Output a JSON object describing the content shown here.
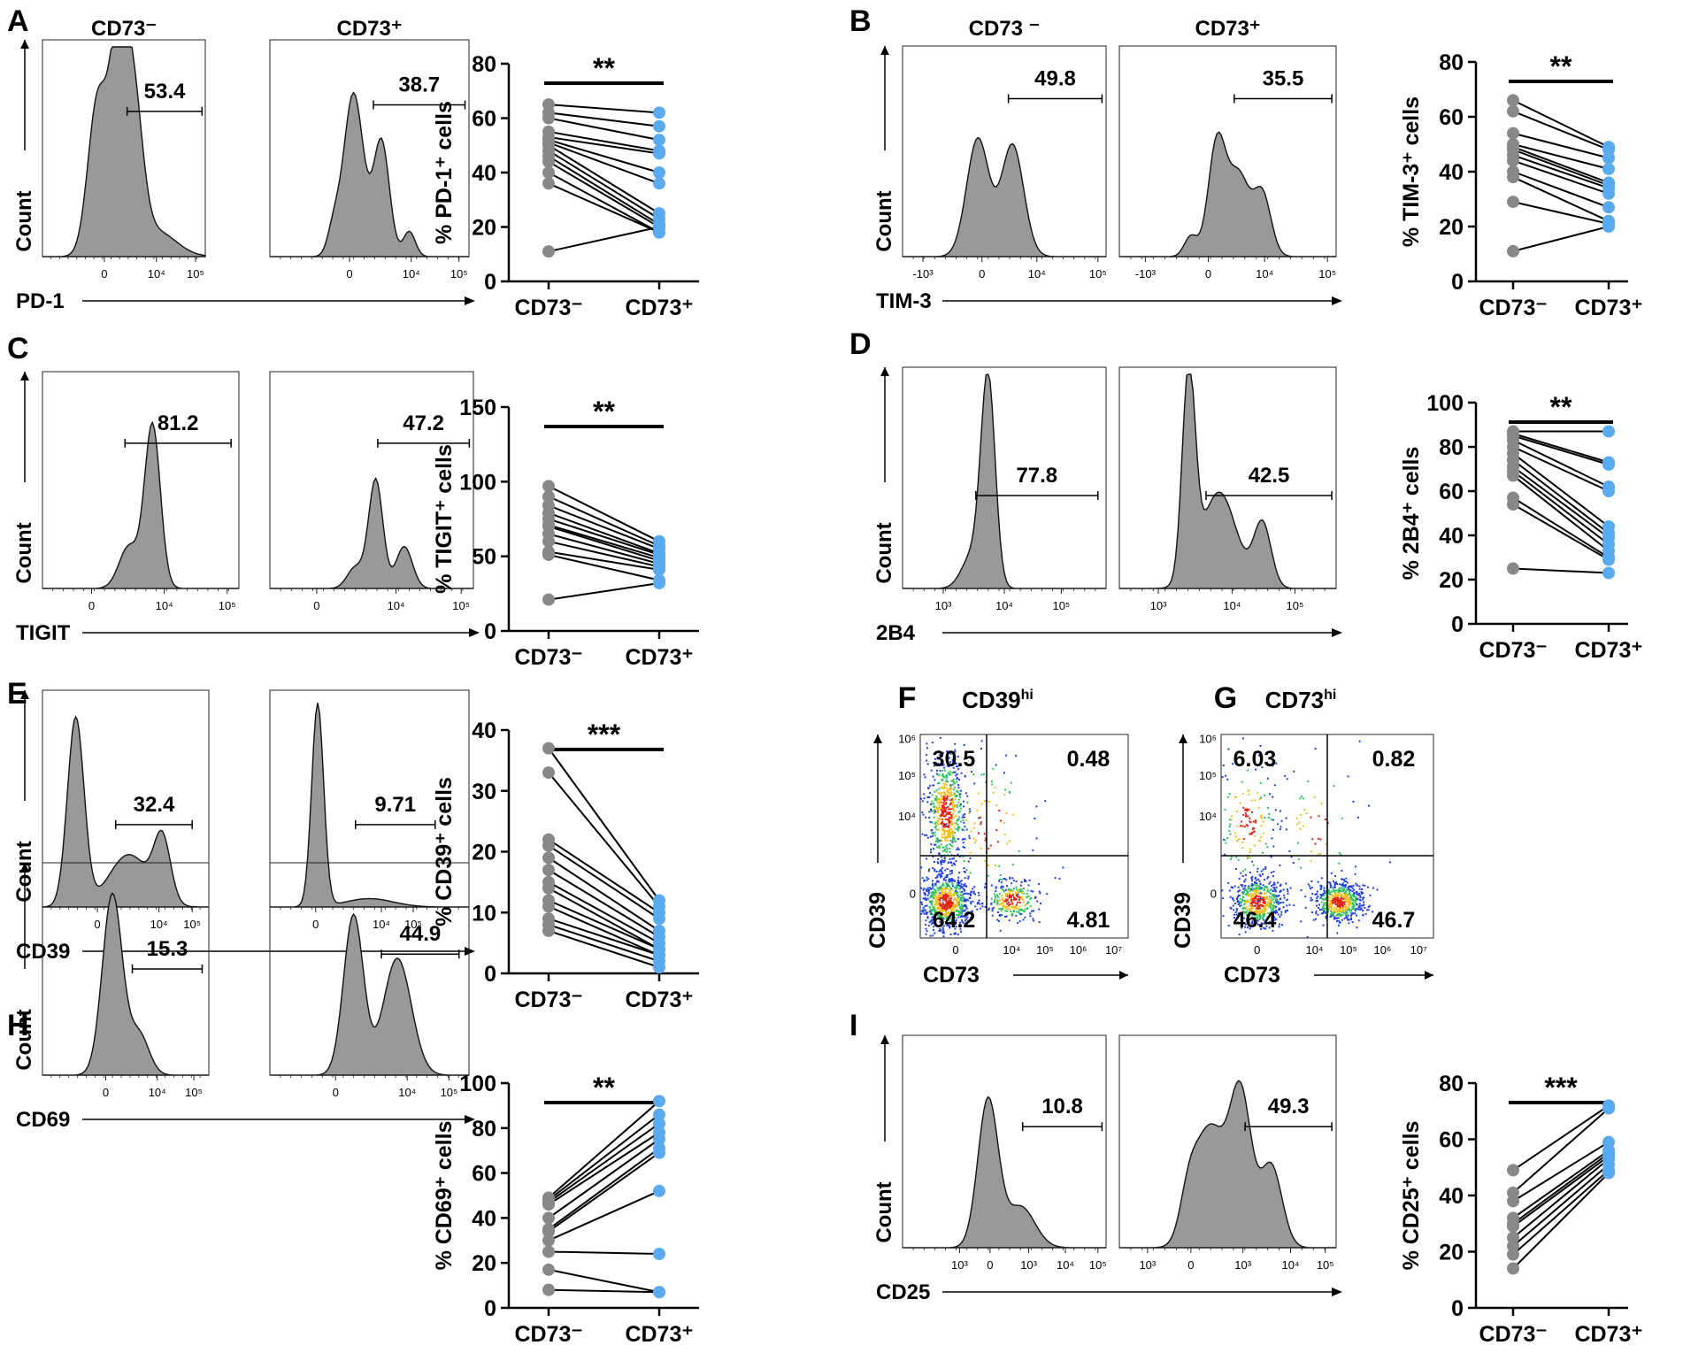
{
  "figure": {
    "panels": [
      {
        "id": "A",
        "marker": "PD-1",
        "labelL": "CD73⁻",
        "labelR": "CD73⁺",
        "pctL": "53.4",
        "pctR": "38.7"
      },
      {
        "id": "B",
        "marker": "TIM-3",
        "labelL": "CD73 ⁻",
        "labelR": "CD73⁺",
        "pctL": "49.8",
        "pctR": "35.5"
      },
      {
        "id": "C",
        "marker": "TIGIT",
        "pctL": "81.2",
        "pctR": "47.2"
      },
      {
        "id": "D",
        "marker": "2B4",
        "pctL": "77.8",
        "pctR": "42.5"
      },
      {
        "id": "E",
        "marker": "CD39",
        "pctL": "32.4",
        "pctR": "9.71"
      },
      {
        "id": "H",
        "marker": "CD69",
        "pctL": "15.3",
        "pctR": "44.9"
      },
      {
        "id": "I",
        "marker": "CD25",
        "pctL": "10.8",
        "pctR": "49.3"
      }
    ],
    "count_label": "Count",
    "tick_labels": {
      "zero": "0",
      "neg3": "-10³",
      "e3": "10³",
      "e4": "10⁴",
      "e5": "10⁵",
      "e6": "10⁶",
      "e7": "10⁷"
    },
    "scatter_panels": [
      {
        "id": "F",
        "title": "CD39",
        "title_sup": "hi",
        "ylabel": "CD39",
        "xlabel": "CD73",
        "q_ul": "30.5",
        "q_ur": "0.48",
        "q_ll": "64.2",
        "q_lr": "4.81"
      },
      {
        "id": "G",
        "title": "CD73",
        "title_sup": "hi",
        "ylabel": "CD39",
        "xlabel": "CD73",
        "q_ul": "6.03",
        "q_ur": "0.82",
        "q_ll": "46.4",
        "q_lr": "46.7"
      }
    ]
  },
  "chart_data": [
    {
      "type": "scatter",
      "panel": "A",
      "ylabel": "% PD-1⁺ cells",
      "categories": [
        "CD73⁻",
        "CD73⁺"
      ],
      "ylim": [
        0,
        80
      ],
      "yticks": [
        0,
        20,
        40,
        60,
        80
      ],
      "significance": "**",
      "pairs": [
        [
          65,
          62
        ],
        [
          62,
          57
        ],
        [
          60,
          52
        ],
        [
          55,
          48
        ],
        [
          53,
          47
        ],
        [
          52,
          40
        ],
        [
          51,
          36
        ],
        [
          50,
          25
        ],
        [
          48,
          23
        ],
        [
          46,
          21
        ],
        [
          44,
          20
        ],
        [
          40,
          18
        ],
        [
          36,
          18
        ],
        [
          11,
          20
        ]
      ]
    },
    {
      "type": "scatter",
      "panel": "B",
      "ylabel": "% TIM-3⁺ cells",
      "categories": [
        "CD73⁻",
        "CD73⁺"
      ],
      "ylim": [
        0,
        80
      ],
      "yticks": [
        0,
        20,
        40,
        60,
        80
      ],
      "significance": "**",
      "pairs": [
        [
          66,
          49
        ],
        [
          62,
          48
        ],
        [
          54,
          45
        ],
        [
          50,
          41
        ],
        [
          49,
          36
        ],
        [
          48,
          35
        ],
        [
          46,
          34
        ],
        [
          44,
          32
        ],
        [
          40,
          27
        ],
        [
          38,
          22
        ],
        [
          29,
          21
        ],
        [
          11,
          20
        ]
      ]
    },
    {
      "type": "scatter",
      "panel": "C",
      "ylabel": "% TIGIT⁺ cells",
      "categories": [
        "CD73⁻",
        "CD73⁺"
      ],
      "ylim": [
        0,
        150
      ],
      "yticks": [
        0,
        50,
        100,
        150
      ],
      "significance": "**",
      "pairs": [
        [
          97,
          60
        ],
        [
          90,
          57
        ],
        [
          84,
          55
        ],
        [
          79,
          52
        ],
        [
          75,
          51
        ],
        [
          71,
          49
        ],
        [
          70,
          47
        ],
        [
          65,
          45
        ],
        [
          60,
          43
        ],
        [
          53,
          41
        ],
        [
          51,
          34
        ],
        [
          21,
          32
        ]
      ]
    },
    {
      "type": "scatter",
      "panel": "D",
      "ylabel": "% 2B4⁺ cells",
      "categories": [
        "CD73⁻",
        "CD73⁺"
      ],
      "ylim": [
        0,
        100
      ],
      "yticks": [
        0,
        20,
        40,
        60,
        80,
        100
      ],
      "significance": "**",
      "pairs": [
        [
          87,
          87
        ],
        [
          86,
          73
        ],
        [
          85,
          72
        ],
        [
          83,
          62
        ],
        [
          80,
          60
        ],
        [
          77,
          44
        ],
        [
          74,
          41
        ],
        [
          71,
          39
        ],
        [
          69,
          36
        ],
        [
          67,
          33
        ],
        [
          57,
          30
        ],
        [
          54,
          29
        ],
        [
          25,
          23
        ]
      ]
    },
    {
      "type": "scatter",
      "panel": "E",
      "ylabel": "% CD39⁺ cells",
      "categories": [
        "CD73⁻",
        "CD73⁺"
      ],
      "ylim": [
        0,
        40
      ],
      "yticks": [
        0,
        10,
        20,
        30,
        40
      ],
      "significance": "***",
      "pairs": [
        [
          37,
          12
        ],
        [
          33,
          11
        ],
        [
          22,
          10
        ],
        [
          21,
          9
        ],
        [
          19,
          7
        ],
        [
          17,
          6
        ],
        [
          15,
          5
        ],
        [
          14,
          4
        ],
        [
          12,
          4
        ],
        [
          11,
          3
        ],
        [
          9,
          3
        ],
        [
          8,
          2
        ],
        [
          7,
          1
        ]
      ]
    },
    {
      "type": "scatter",
      "panel": "H",
      "ylabel": "% CD69⁺ cells",
      "categories": [
        "CD73⁻",
        "CD73⁺"
      ],
      "ylim": [
        0,
        100
      ],
      "yticks": [
        0,
        20,
        40,
        60,
        80,
        100
      ],
      "significance": "**",
      "pairs": [
        [
          49,
          92
        ],
        [
          48,
          86
        ],
        [
          47,
          82
        ],
        [
          46,
          78
        ],
        [
          40,
          75
        ],
        [
          35,
          71
        ],
        [
          34,
          69
        ],
        [
          30,
          52
        ],
        [
          25,
          24
        ],
        [
          17,
          7
        ],
        [
          8,
          7
        ]
      ]
    },
    {
      "type": "scatter",
      "panel": "I",
      "ylabel": "% CD25⁺ cells",
      "categories": [
        "CD73⁻",
        "CD73⁺"
      ],
      "ylim": [
        0,
        80
      ],
      "yticks": [
        0,
        20,
        40,
        60,
        80
      ],
      "significance": "***",
      "pairs": [
        [
          49,
          72
        ],
        [
          41,
          71
        ],
        [
          38,
          59
        ],
        [
          32,
          56
        ],
        [
          30,
          55
        ],
        [
          29,
          54
        ],
        [
          25,
          53
        ],
        [
          22,
          51
        ],
        [
          19,
          49
        ],
        [
          14,
          48
        ]
      ]
    }
  ]
}
